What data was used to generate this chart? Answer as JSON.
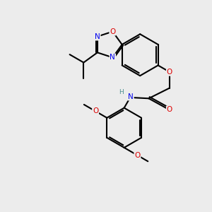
{
  "background_color": "#ececec",
  "bond_color": "#000000",
  "bond_width": 1.5,
  "atom_colors": {
    "N": "#0000ee",
    "O": "#dd0000",
    "H": "#4a8f8f"
  },
  "fs": 7.5,
  "fss": 6.5
}
